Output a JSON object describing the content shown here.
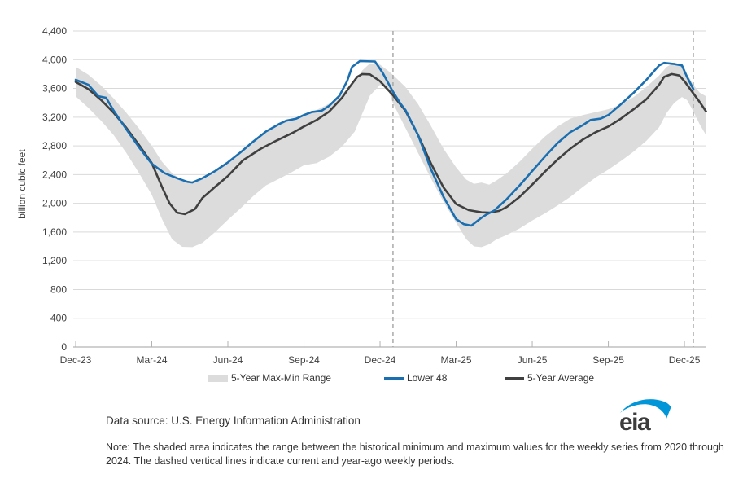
{
  "page": {
    "background": "#ffffff"
  },
  "chart_data": {
    "type": "line",
    "title": "",
    "ylabel": "billion cubic feet",
    "y_axis": {
      "min": 0,
      "max": 4400,
      "step": 400,
      "grid": true
    },
    "x_axis": {
      "tick_labels": [
        "Dec-23",
        "Mar-24",
        "Jun-24",
        "Sep-24",
        "Dec-24",
        "Mar-25",
        "Jun-25",
        "Sep-25",
        "Dec-25"
      ],
      "tick_months": [
        0,
        3,
        6,
        9,
        12,
        15,
        18,
        21,
        24
      ]
    },
    "dashed_marker_months": [
      12.51,
      24.35
    ],
    "colors": {
      "band": "#dcdcdc",
      "average_line": "#404040",
      "lower48_line": "#1b6eaf",
      "gridline": "#d9d9d9",
      "axis_line": "#b3b3b3",
      "dashed_line": "#a3a3a3",
      "axis_text": "#404040",
      "eia_blue": "#0096d7"
    },
    "series": [
      {
        "name": "5-Year Max-Min Range",
        "type": "band",
        "color": "#dcdcdc",
        "x": [
          0,
          0.5,
          1,
          1.5,
          2,
          2.5,
          3,
          3.4,
          3.8,
          4.2,
          4.6,
          5,
          5.5,
          6,
          6.5,
          7,
          7.5,
          8,
          8.5,
          9,
          9.5,
          10,
          10.5,
          11,
          11.3,
          11.6,
          12,
          12.3,
          12.5,
          13,
          13.5,
          14,
          14.5,
          15,
          15.4,
          15.7,
          16,
          16.3,
          16.6,
          17,
          17.5,
          18,
          18.5,
          19,
          19.5,
          20,
          20.5,
          21,
          21.5,
          22,
          22.5,
          23,
          23.3,
          23.6,
          23.9,
          24.1,
          24.35,
          24.6,
          24.85
        ],
        "upper": [
          3900,
          3790,
          3640,
          3460,
          3260,
          3040,
          2800,
          2580,
          2420,
          2320,
          2300,
          2330,
          2430,
          2560,
          2700,
          2850,
          2980,
          3090,
          3170,
          3230,
          3300,
          3390,
          3520,
          3700,
          3850,
          3950,
          3930,
          3850,
          3790,
          3620,
          3380,
          3080,
          2760,
          2500,
          2330,
          2270,
          2290,
          2260,
          2320,
          2420,
          2580,
          2760,
          2930,
          3070,
          3180,
          3230,
          3270,
          3310,
          3380,
          3480,
          3620,
          3780,
          3900,
          3960,
          3920,
          3800,
          3650,
          3540,
          3490
        ],
        "lower": [
          3490,
          3330,
          3150,
          2950,
          2700,
          2420,
          2120,
          1780,
          1500,
          1395,
          1390,
          1450,
          1600,
          1770,
          1930,
          2100,
          2250,
          2340,
          2430,
          2530,
          2560,
          2650,
          2790,
          3000,
          3250,
          3500,
          3650,
          3600,
          3400,
          3050,
          2700,
          2350,
          2020,
          1730,
          1500,
          1400,
          1390,
          1430,
          1500,
          1560,
          1650,
          1760,
          1860,
          1970,
          2090,
          2230,
          2360,
          2470,
          2590,
          2720,
          2870,
          3060,
          3260,
          3400,
          3480,
          3440,
          3280,
          3100,
          2950
        ]
      },
      {
        "name": "5-Year Average",
        "type": "line",
        "color": "#404040",
        "x": [
          0,
          0.5,
          1,
          1.5,
          2,
          2.5,
          3,
          3.4,
          3.7,
          4,
          4.3,
          4.7,
          5,
          5.5,
          6,
          6.6,
          7.3,
          7.9,
          8.6,
          9,
          9.5,
          10,
          10.5,
          10.8,
          11.1,
          11.3,
          11.6,
          12,
          12.5,
          13,
          13.5,
          14,
          14.5,
          15,
          15.5,
          16,
          16.3,
          16.7,
          17,
          17.5,
          18,
          18.5,
          19,
          19.5,
          20,
          20.5,
          21,
          21.5,
          22,
          22.5,
          23,
          23.2,
          23.5,
          23.8,
          24,
          24.35,
          24.6,
          24.85
        ],
        "y": [
          3690,
          3590,
          3440,
          3260,
          3050,
          2810,
          2560,
          2230,
          2000,
          1870,
          1850,
          1920,
          2075,
          2230,
          2380,
          2600,
          2760,
          2870,
          2990,
          3070,
          3160,
          3280,
          3470,
          3620,
          3760,
          3800,
          3795,
          3700,
          3510,
          3290,
          2950,
          2560,
          2220,
          1990,
          1905,
          1875,
          1870,
          1895,
          1950,
          2090,
          2260,
          2440,
          2610,
          2760,
          2890,
          2990,
          3070,
          3180,
          3310,
          3450,
          3650,
          3760,
          3800,
          3780,
          3700,
          3530,
          3410,
          3280
        ]
      },
      {
        "name": "Lower 48",
        "type": "line",
        "color": "#1b6eaf",
        "x": [
          0,
          0.5,
          0.9,
          1.2,
          1.5,
          2,
          2.5,
          3,
          3.5,
          4,
          4.4,
          4.6,
          5,
          5.5,
          6,
          6.5,
          7,
          7.5,
          8,
          8.3,
          8.7,
          9,
          9.3,
          9.7,
          10,
          10.4,
          10.7,
          10.9,
          11.2,
          11.8,
          12.1,
          12.5,
          12.8,
          13,
          13.5,
          14,
          14.5,
          15,
          15.3,
          15.6,
          16,
          16.2,
          16.5,
          17,
          17.5,
          18,
          18.5,
          19,
          19.5,
          20,
          20.3,
          20.7,
          21,
          21.5,
          22,
          22.5,
          23,
          23.2,
          23.6,
          23.9,
          24.1,
          24.35
        ],
        "y": [
          3720,
          3650,
          3490,
          3470,
          3290,
          3030,
          2780,
          2550,
          2420,
          2350,
          2300,
          2290,
          2350,
          2450,
          2570,
          2710,
          2860,
          3000,
          3100,
          3150,
          3180,
          3230,
          3270,
          3290,
          3360,
          3500,
          3700,
          3900,
          3980,
          3975,
          3820,
          3560,
          3390,
          3300,
          2950,
          2480,
          2090,
          1780,
          1710,
          1690,
          1800,
          1845,
          1900,
          2060,
          2250,
          2450,
          2650,
          2840,
          2990,
          3090,
          3160,
          3180,
          3230,
          3380,
          3540,
          3720,
          3920,
          3955,
          3940,
          3920,
          3760,
          3590
        ]
      }
    ],
    "legend": [
      {
        "label": "5-Year Max-Min Range",
        "swatch": "band"
      },
      {
        "label": "Lower 48",
        "swatch": "line-blue"
      },
      {
        "label": "5-Year Average",
        "swatch": "line-dark"
      }
    ]
  },
  "footer": {
    "data_source": "Data source: U.S. Energy Information Administration",
    "note": "Note: The shaded area indicates the range between the historical minimum and maximum values for the weekly series from 2020 through 2024. The dashed vertical lines indicate current and year-ago weekly periods.",
    "logo_text": "eia"
  }
}
